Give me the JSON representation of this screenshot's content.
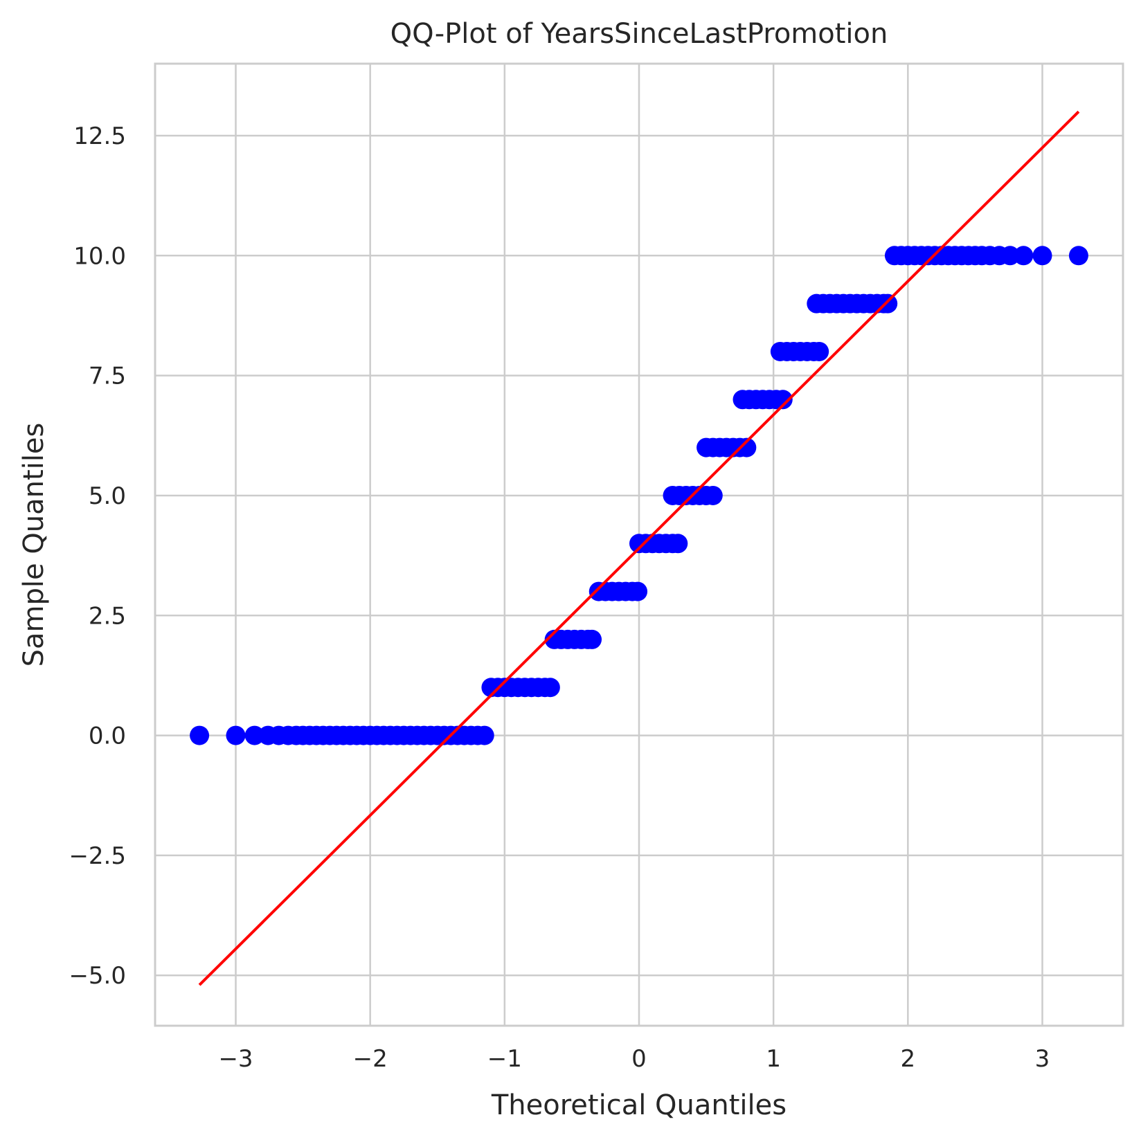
{
  "chart_data": {
    "type": "scatter",
    "title": "QQ-Plot of YearsSinceLastPromotion",
    "xlabel": "Theoretical Quantiles",
    "ylabel": "Sample Quantiles",
    "xlim": [
      -3.6,
      3.6
    ],
    "ylim": [
      -6.05,
      14.0
    ],
    "x_ticks": [
      {
        "value": -3,
        "label": "−3"
      },
      {
        "value": -2,
        "label": "−2"
      },
      {
        "value": -1,
        "label": "−1"
      },
      {
        "value": 0,
        "label": "0"
      },
      {
        "value": 1,
        "label": "1"
      },
      {
        "value": 2,
        "label": "2"
      },
      {
        "value": 3,
        "label": "3"
      }
    ],
    "y_ticks": [
      {
        "value": -5.0,
        "label": "−5.0"
      },
      {
        "value": -2.5,
        "label": "−2.5"
      },
      {
        "value": 0.0,
        "label": "0.0"
      },
      {
        "value": 2.5,
        "label": "2.5"
      },
      {
        "value": 5.0,
        "label": "5.0"
      },
      {
        "value": 7.5,
        "label": "7.5"
      },
      {
        "value": 10.0,
        "label": "10.0"
      },
      {
        "value": 12.5,
        "label": "12.5"
      }
    ],
    "grid": true,
    "series": [
      {
        "kind": "points",
        "color": "#0000ff",
        "points": [
          {
            "x": -3.27,
            "y": 0
          },
          {
            "x": -3.0,
            "y": 0
          },
          {
            "x": -2.86,
            "y": 0
          },
          {
            "x": -2.76,
            "y": 0
          },
          {
            "x": -2.68,
            "y": 0
          },
          {
            "x": -2.61,
            "y": 0
          },
          {
            "x": -2.55,
            "y": 0
          },
          {
            "x": -2.5,
            "y": 0
          },
          {
            "x": -2.45,
            "y": 0
          },
          {
            "x": -2.4,
            "y": 0
          },
          {
            "x": -2.35,
            "y": 0
          },
          {
            "x": -2.3,
            "y": 0
          },
          {
            "x": -2.25,
            "y": 0
          },
          {
            "x": -2.2,
            "y": 0
          },
          {
            "x": -2.15,
            "y": 0
          },
          {
            "x": -2.1,
            "y": 0
          },
          {
            "x": -2.05,
            "y": 0
          },
          {
            "x": -2.0,
            "y": 0
          },
          {
            "x": -1.95,
            "y": 0
          },
          {
            "x": -1.9,
            "y": 0
          },
          {
            "x": -1.85,
            "y": 0
          },
          {
            "x": -1.8,
            "y": 0
          },
          {
            "x": -1.75,
            "y": 0
          },
          {
            "x": -1.7,
            "y": 0
          },
          {
            "x": -1.65,
            "y": 0
          },
          {
            "x": -1.6,
            "y": 0
          },
          {
            "x": -1.55,
            "y": 0
          },
          {
            "x": -1.5,
            "y": 0
          },
          {
            "x": -1.45,
            "y": 0
          },
          {
            "x": -1.4,
            "y": 0
          },
          {
            "x": -1.35,
            "y": 0
          },
          {
            "x": -1.3,
            "y": 0
          },
          {
            "x": -1.25,
            "y": 0
          },
          {
            "x": -1.2,
            "y": 0
          },
          {
            "x": -1.15,
            "y": 0
          },
          {
            "x": -1.1,
            "y": 1
          },
          {
            "x": -1.05,
            "y": 1
          },
          {
            "x": -1.0,
            "y": 1
          },
          {
            "x": -0.95,
            "y": 1
          },
          {
            "x": -0.9,
            "y": 1
          },
          {
            "x": -0.85,
            "y": 1
          },
          {
            "x": -0.8,
            "y": 1
          },
          {
            "x": -0.75,
            "y": 1
          },
          {
            "x": -0.7,
            "y": 1
          },
          {
            "x": -0.66,
            "y": 1
          },
          {
            "x": -0.63,
            "y": 2
          },
          {
            "x": -0.58,
            "y": 2
          },
          {
            "x": -0.53,
            "y": 2
          },
          {
            "x": -0.48,
            "y": 2
          },
          {
            "x": -0.43,
            "y": 2
          },
          {
            "x": -0.38,
            "y": 2
          },
          {
            "x": -0.35,
            "y": 2
          },
          {
            "x": -0.3,
            "y": 3
          },
          {
            "x": -0.25,
            "y": 3
          },
          {
            "x": -0.2,
            "y": 3
          },
          {
            "x": -0.15,
            "y": 3
          },
          {
            "x": -0.1,
            "y": 3
          },
          {
            "x": -0.05,
            "y": 3
          },
          {
            "x": -0.01,
            "y": 3
          },
          {
            "x": 0.0,
            "y": 4
          },
          {
            "x": 0.05,
            "y": 4
          },
          {
            "x": 0.1,
            "y": 4
          },
          {
            "x": 0.15,
            "y": 4
          },
          {
            "x": 0.2,
            "y": 4
          },
          {
            "x": 0.25,
            "y": 4
          },
          {
            "x": 0.29,
            "y": 4
          },
          {
            "x": 0.25,
            "y": 5
          },
          {
            "x": 0.3,
            "y": 5
          },
          {
            "x": 0.35,
            "y": 5
          },
          {
            "x": 0.4,
            "y": 5
          },
          {
            "x": 0.45,
            "y": 5
          },
          {
            "x": 0.5,
            "y": 5
          },
          {
            "x": 0.55,
            "y": 5
          },
          {
            "x": 0.5,
            "y": 6
          },
          {
            "x": 0.55,
            "y": 6
          },
          {
            "x": 0.6,
            "y": 6
          },
          {
            "x": 0.65,
            "y": 6
          },
          {
            "x": 0.7,
            "y": 6
          },
          {
            "x": 0.75,
            "y": 6
          },
          {
            "x": 0.8,
            "y": 6
          },
          {
            "x": 0.77,
            "y": 7
          },
          {
            "x": 0.82,
            "y": 7
          },
          {
            "x": 0.87,
            "y": 7
          },
          {
            "x": 0.92,
            "y": 7
          },
          {
            "x": 0.97,
            "y": 7
          },
          {
            "x": 1.02,
            "y": 7
          },
          {
            "x": 1.07,
            "y": 7
          },
          {
            "x": 1.05,
            "y": 8
          },
          {
            "x": 1.1,
            "y": 8
          },
          {
            "x": 1.15,
            "y": 8
          },
          {
            "x": 1.2,
            "y": 8
          },
          {
            "x": 1.25,
            "y": 8
          },
          {
            "x": 1.3,
            "y": 8
          },
          {
            "x": 1.34,
            "y": 8
          },
          {
            "x": 1.32,
            "y": 9
          },
          {
            "x": 1.37,
            "y": 9
          },
          {
            "x": 1.42,
            "y": 9
          },
          {
            "x": 1.47,
            "y": 9
          },
          {
            "x": 1.52,
            "y": 9
          },
          {
            "x": 1.57,
            "y": 9
          },
          {
            "x": 1.62,
            "y": 9
          },
          {
            "x": 1.67,
            "y": 9
          },
          {
            "x": 1.72,
            "y": 9
          },
          {
            "x": 1.77,
            "y": 9
          },
          {
            "x": 1.82,
            "y": 9
          },
          {
            "x": 1.85,
            "y": 9
          },
          {
            "x": 1.9,
            "y": 10
          },
          {
            "x": 1.95,
            "y": 10
          },
          {
            "x": 2.0,
            "y": 10
          },
          {
            "x": 2.05,
            "y": 10
          },
          {
            "x": 2.1,
            "y": 10
          },
          {
            "x": 2.15,
            "y": 10
          },
          {
            "x": 2.2,
            "y": 10
          },
          {
            "x": 2.25,
            "y": 10
          },
          {
            "x": 2.3,
            "y": 10
          },
          {
            "x": 2.35,
            "y": 10
          },
          {
            "x": 2.4,
            "y": 10
          },
          {
            "x": 2.45,
            "y": 10
          },
          {
            "x": 2.5,
            "y": 10
          },
          {
            "x": 2.55,
            "y": 10
          },
          {
            "x": 2.61,
            "y": 10
          },
          {
            "x": 2.68,
            "y": 10
          },
          {
            "x": 2.76,
            "y": 10
          },
          {
            "x": 2.86,
            "y": 10
          },
          {
            "x": 3.0,
            "y": 10
          },
          {
            "x": 3.27,
            "y": 10
          }
        ]
      },
      {
        "kind": "line",
        "color": "#ff0000",
        "points": [
          {
            "x": -3.27,
            "y": -5.2
          },
          {
            "x": 3.27,
            "y": 13.0
          }
        ]
      }
    ]
  }
}
